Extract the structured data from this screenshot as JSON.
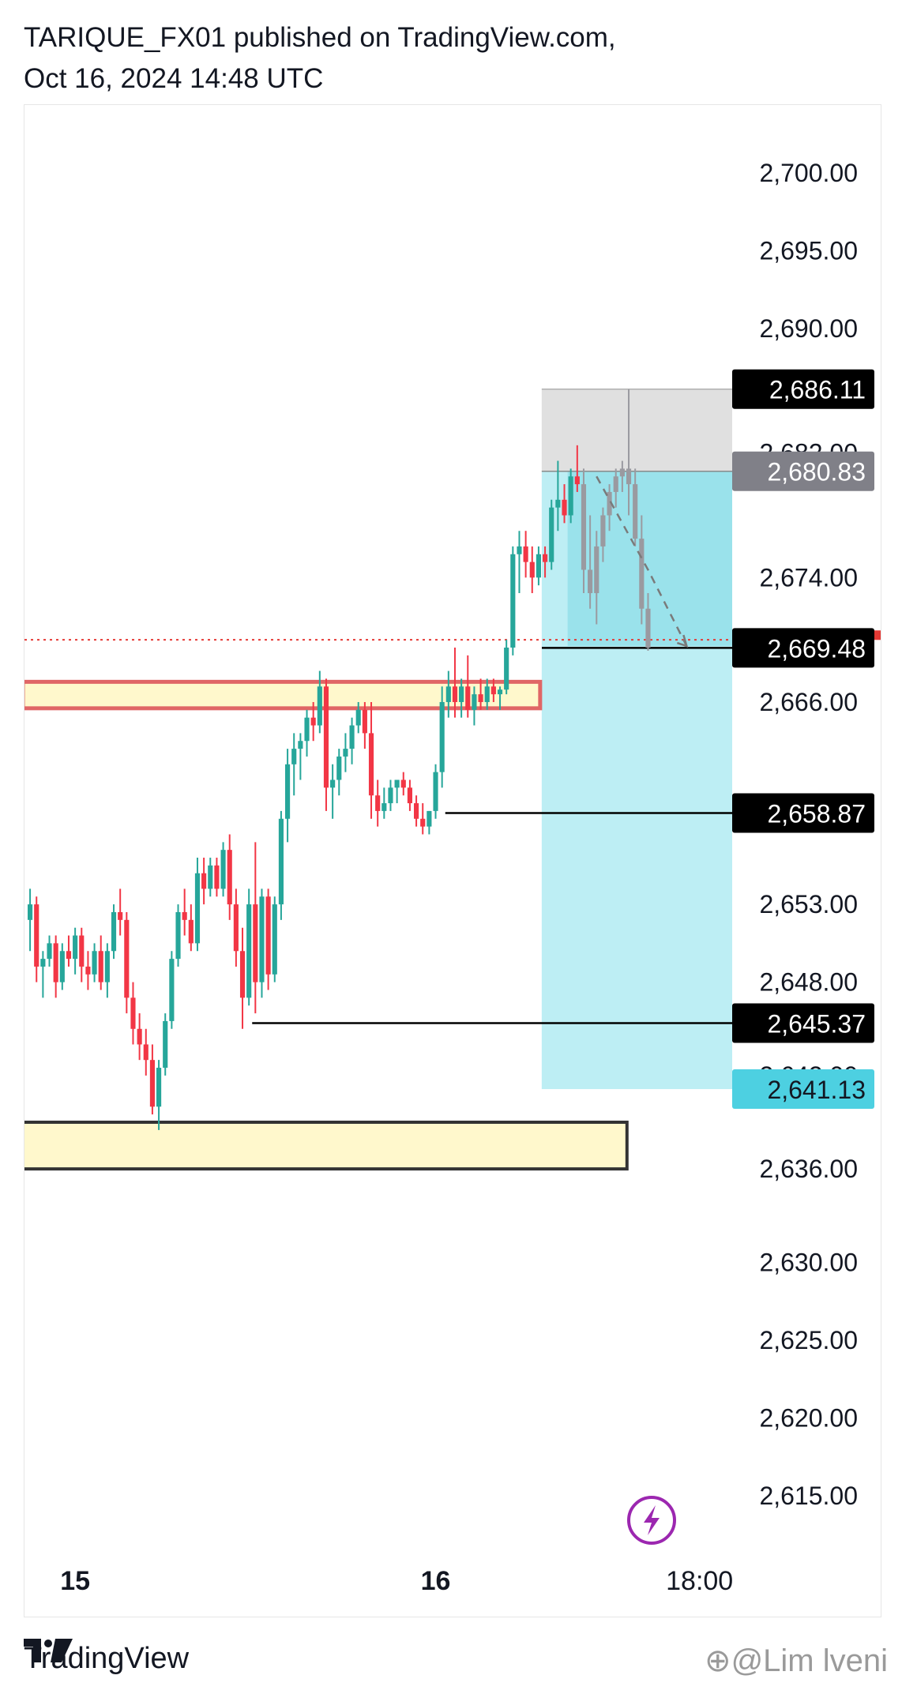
{
  "header": {
    "line1": "TARIQUE_FX01 published on TradingView.com,",
    "line2": "Oct 16, 2024 14:48 UTC"
  },
  "footer": {
    "brand": "TradingView",
    "watermark": "⊕@Lim lveni",
    "logo_icon": "tradingview-logo-icon"
  },
  "colors": {
    "up": "#26a69a",
    "down": "#f23645",
    "position_gray": "#9a9aa0",
    "profit_zone": "#bdeef4",
    "stop_zone": "#dedede",
    "zone_yellow": "#fff8cc",
    "zone_red_border": "#e06666",
    "label_black": "#000000",
    "label_gray": "#808088",
    "label_cyan": "#4dd0e1",
    "current_price_red": "#e53935",
    "lightning": "#9c27b0"
  },
  "chart_data": {
    "type": "candlestick",
    "symbol_timeframe": "",
    "ylim": [
      2611,
      2706
    ],
    "y_ticks": [
      "2,700.00",
      "2,695.00",
      "2,690.00",
      "2,682.00",
      "2,674.00",
      "2,666.00",
      "2,653.00",
      "2,648.00",
      "2,642.00",
      "2,636.00",
      "2,630.00",
      "2,625.00",
      "2,620.00",
      "2,615.00"
    ],
    "x_ticks": [
      {
        "label": "15",
        "bold": true,
        "bar": 7
      },
      {
        "label": "16",
        "bold": true,
        "bar": 63
      },
      {
        "label": "18:00",
        "bold": false,
        "bar": 104
      }
    ],
    "price_labels": [
      {
        "text": "2,686.11",
        "value": 2686.11,
        "style": "black"
      },
      {
        "text": "2,680.83",
        "value": 2680.83,
        "style": "gray"
      },
      {
        "text": "2,669.48",
        "value": 2669.48,
        "style": "black"
      },
      {
        "text": "2,658.87",
        "value": 2658.87,
        "style": "black"
      },
      {
        "text": "2,645.37",
        "value": 2645.37,
        "style": "black"
      },
      {
        "text": "2,641.13",
        "value": 2641.13,
        "style": "cyan"
      }
    ],
    "current_price": 2670.0,
    "horizontal_lines": [
      {
        "value": 2669.48,
        "from_bar": 80
      },
      {
        "value": 2658.87,
        "from_bar": 65
      },
      {
        "value": 2645.37,
        "from_bar": 35
      }
    ],
    "zones": [
      {
        "kind": "resistance",
        "top": 2667.3,
        "bottom": 2665.6,
        "from_bar": 0,
        "to_bar": 79
      },
      {
        "kind": "support",
        "top": 2639.0,
        "bottom": 2636.0,
        "from_bar": 0,
        "to_bar": 92
      }
    ],
    "short_position": {
      "entry": 2680.83,
      "stop": 2686.11,
      "target": 2641.13,
      "from_bar": 79,
      "to_bar": 112
    },
    "projection_path": [
      [
        88,
        2680.5
      ],
      [
        96,
        2674.5
      ],
      [
        102,
        2669.6
      ]
    ],
    "candles": [
      [
        2652,
        2654,
        2650,
        2653
      ],
      [
        2653,
        2653.5,
        2648,
        2649
      ],
      [
        2649,
        2650,
        2647,
        2649.5
      ],
      [
        2649.5,
        2651,
        2649,
        2650.5
      ],
      [
        2650.5,
        2651,
        2647,
        2648
      ],
      [
        2648,
        2650.5,
        2647.5,
        2650
      ],
      [
        2650,
        2651,
        2649,
        2649.5
      ],
      [
        2649.5,
        2651.5,
        2648.5,
        2651
      ],
      [
        2651,
        2651.5,
        2648,
        2649
      ],
      [
        2649,
        2650,
        2647.5,
        2648.5
      ],
      [
        2648.5,
        2650.5,
        2648,
        2650
      ],
      [
        2650,
        2651,
        2647.5,
        2648
      ],
      [
        2648,
        2650.5,
        2647,
        2650
      ],
      [
        2650,
        2653,
        2649.5,
        2652.5
      ],
      [
        2652.5,
        2654,
        2651,
        2652
      ],
      [
        2652,
        2652.5,
        2646,
        2647
      ],
      [
        2647,
        2648,
        2644,
        2645
      ],
      [
        2645,
        2646,
        2643,
        2644
      ],
      [
        2644,
        2645,
        2642,
        2643
      ],
      [
        2643,
        2644,
        2639.5,
        2640
      ],
      [
        2640,
        2643,
        2638.5,
        2642.5
      ],
      [
        2642.5,
        2646,
        2642,
        2645.5
      ],
      [
        2645.5,
        2650,
        2645,
        2649.5
      ],
      [
        2649.5,
        2653,
        2649,
        2652.5
      ],
      [
        2652.5,
        2654,
        2651,
        2652
      ],
      [
        2652,
        2653,
        2650,
        2650.5
      ],
      [
        2650.5,
        2656,
        2650,
        2655
      ],
      [
        2655,
        2656,
        2653,
        2654
      ],
      [
        2654,
        2656,
        2653.5,
        2655.5
      ],
      [
        2655.5,
        2656,
        2653.5,
        2654
      ],
      [
        2654,
        2657,
        2653.5,
        2656.5
      ],
      [
        2656.5,
        2657.5,
        2652,
        2653
      ],
      [
        2653,
        2654,
        2649,
        2650
      ],
      [
        2650,
        2651.5,
        2645,
        2647
      ],
      [
        2647,
        2654,
        2646.5,
        2653
      ],
      [
        2653,
        2657,
        2646,
        2648
      ],
      [
        2648,
        2654,
        2647,
        2653.5
      ],
      [
        2653.5,
        2654,
        2647.5,
        2648.5
      ],
      [
        2648.5,
        2653.5,
        2648,
        2653
      ],
      [
        2653,
        2659,
        2652,
        2658.5
      ],
      [
        2658.5,
        2663,
        2657,
        2662
      ],
      [
        2662,
        2664,
        2660,
        2663
      ],
      [
        2663,
        2664,
        2661,
        2663.5
      ],
      [
        2663.5,
        2665.5,
        2662.5,
        2665
      ],
      [
        2665,
        2666,
        2663.5,
        2664.5
      ],
      [
        2664.5,
        2668,
        2664,
        2667
      ],
      [
        2667,
        2667.5,
        2659,
        2660.5
      ],
      [
        2660.5,
        2662,
        2658.5,
        2661
      ],
      [
        2661,
        2663,
        2660,
        2662.5
      ],
      [
        2662.5,
        2664,
        2661.5,
        2663
      ],
      [
        2663,
        2665,
        2662,
        2664.5
      ],
      [
        2664.5,
        2666,
        2664,
        2665.5
      ],
      [
        2665.5,
        2666,
        2663,
        2664
      ],
      [
        2664,
        2666,
        2658.5,
        2660
      ],
      [
        2660,
        2661,
        2658,
        2659
      ],
      [
        2659,
        2660.5,
        2658.5,
        2659.5
      ],
      [
        2659.5,
        2661,
        2659,
        2660.5
      ],
      [
        2660.5,
        2661,
        2659.5,
        2661
      ],
      [
        2661,
        2661.5,
        2660,
        2660.5
      ],
      [
        2660.5,
        2661,
        2659,
        2659.5
      ],
      [
        2659.5,
        2660,
        2658,
        2658.5
      ],
      [
        2658.5,
        2659.5,
        2657.5,
        2658
      ],
      [
        2658,
        2659,
        2657.5,
        2659
      ],
      [
        2659,
        2662,
        2658.5,
        2661.5
      ],
      [
        2661.5,
        2667,
        2660.5,
        2666
      ],
      [
        2666,
        2668,
        2665,
        2667
      ],
      [
        2667,
        2669.5,
        2665,
        2666
      ],
      [
        2666,
        2667.5,
        2665,
        2667
      ],
      [
        2667,
        2669,
        2665,
        2665.5
      ],
      [
        2665.5,
        2667,
        2664.5,
        2666.5
      ],
      [
        2666.5,
        2667.5,
        2665.5,
        2666
      ],
      [
        2666,
        2667.5,
        2665.5,
        2667
      ],
      [
        2667,
        2667.5,
        2666,
        2666.5
      ],
      [
        2666.5,
        2667,
        2665.5,
        2666.8
      ],
      [
        2666.8,
        2670,
        2666.5,
        2669.5
      ],
      [
        2669.5,
        2676,
        2669,
        2675.5
      ],
      [
        2675.5,
        2677,
        2673,
        2676
      ],
      [
        2676,
        2677,
        2674,
        2675
      ],
      [
        2675,
        2676,
        2673,
        2674
      ],
      [
        2674,
        2676,
        2673.5,
        2675.5
      ],
      [
        2675.5,
        2676,
        2674,
        2675
      ],
      [
        2675,
        2679,
        2674.5,
        2678.5
      ],
      [
        2678.5,
        2681.5,
        2677,
        2679
      ],
      [
        2679,
        2680,
        2677.5,
        2678
      ],
      [
        2678,
        2681,
        2677.5,
        2680.5
      ],
      [
        2680.5,
        2682.5,
        2679.5,
        2680
      ],
      [
        2680,
        2681,
        2673,
        2674.5
      ],
      [
        2674.5,
        2678,
        2672,
        2673
      ],
      [
        2673,
        2677,
        2671,
        2676
      ],
      [
        2676,
        2678.5,
        2675,
        2678
      ],
      [
        2678,
        2680,
        2677,
        2679.5
      ],
      [
        2679.5,
        2681,
        2678.5,
        2680.5
      ],
      [
        2680.5,
        2681.5,
        2679.5,
        2681
      ],
      [
        2681,
        2686.1,
        2678,
        2680
      ],
      [
        2680,
        2681,
        2676,
        2676.5
      ],
      [
        2676.5,
        2678,
        2671,
        2672
      ],
      [
        2672,
        2673,
        2669.3,
        2669.5
      ]
    ]
  }
}
